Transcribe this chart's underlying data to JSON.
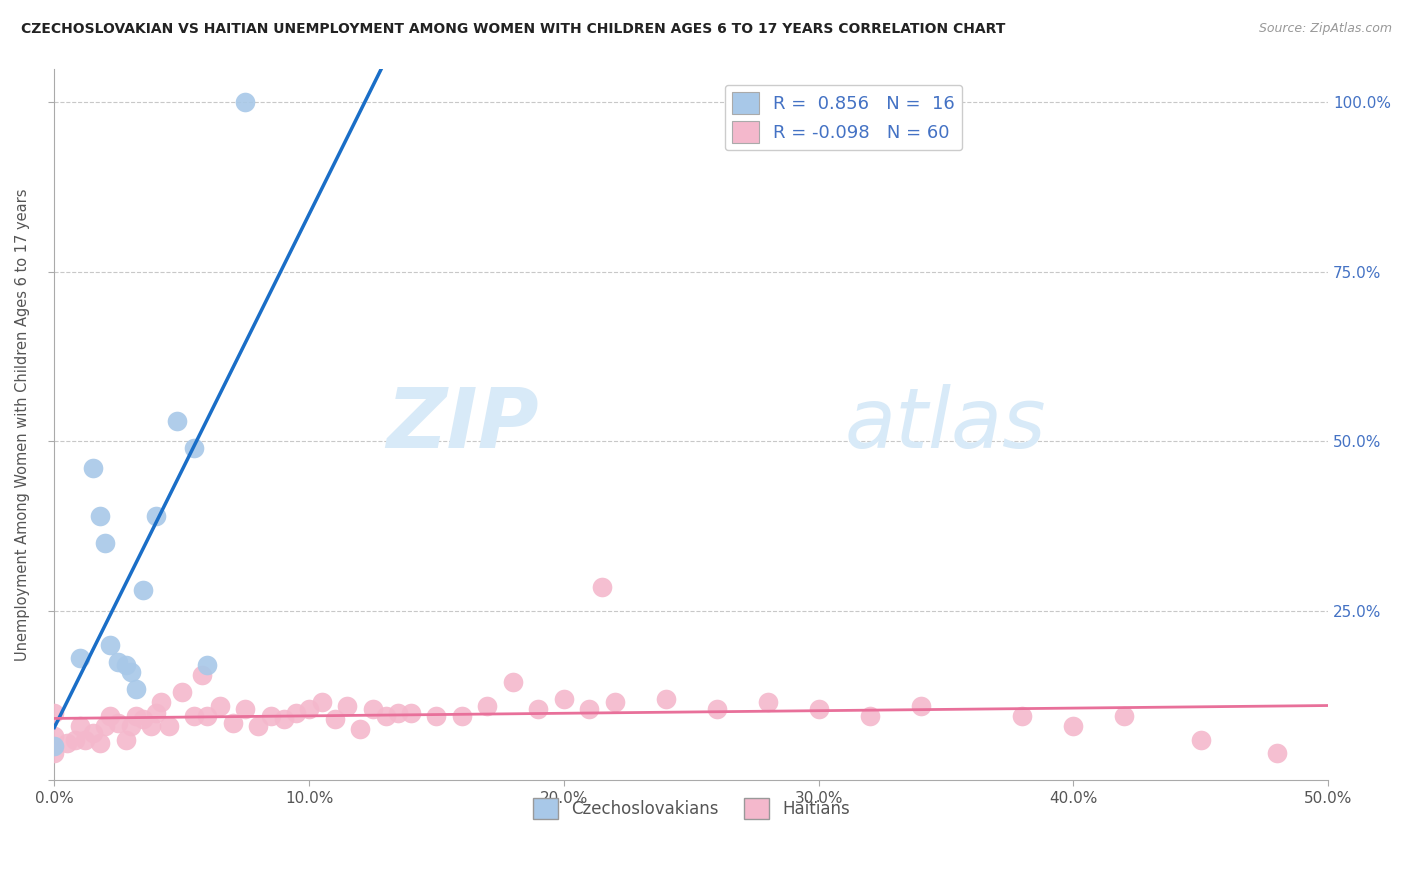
{
  "title": "CZECHOSLOVAKIAN VS HAITIAN UNEMPLOYMENT AMONG WOMEN WITH CHILDREN AGES 6 TO 17 YEARS CORRELATION CHART",
  "source": "Source: ZipAtlas.com",
  "ylabel": "Unemployment Among Women with Children Ages 6 to 17 years",
  "xlim": [
    0,
    0.5
  ],
  "ylim": [
    0,
    1.05
  ],
  "xtick_vals": [
    0.0,
    0.1,
    0.2,
    0.3,
    0.4,
    0.5
  ],
  "xtick_labels": [
    "0.0%",
    "10.0%",
    "20.0%",
    "30.0%",
    "40.0%",
    "50.0%"
  ],
  "ytick_positions": [
    0.0,
    0.25,
    0.5,
    0.75,
    1.0
  ],
  "ytick_labels": [
    "",
    "25.0%",
    "50.0%",
    "75.0%",
    "100.0%"
  ],
  "czech_color": "#a8c8e8",
  "haitian_color": "#f4b8cc",
  "czech_line_color": "#1a6ec7",
  "haitian_line_color": "#e8709a",
  "czech_R": 0.856,
  "czech_N": 16,
  "haitian_R": -0.098,
  "haitian_N": 60,
  "background_color": "#ffffff",
  "grid_color": "#c8c8c8",
  "watermark_color": "#d8eaf8",
  "czech_x": [
    0.0,
    0.01,
    0.015,
    0.018,
    0.02,
    0.022,
    0.025,
    0.028,
    0.03,
    0.032,
    0.035,
    0.04,
    0.048,
    0.055,
    0.06,
    0.075
  ],
  "czech_y": [
    0.05,
    0.18,
    0.46,
    0.39,
    0.35,
    0.2,
    0.175,
    0.17,
    0.16,
    0.135,
    0.28,
    0.39,
    0.53,
    0.49,
    0.17,
    1.0
  ],
  "haitian_x": [
    0.0,
    0.0,
    0.0,
    0.005,
    0.008,
    0.01,
    0.012,
    0.015,
    0.018,
    0.02,
    0.022,
    0.025,
    0.028,
    0.03,
    0.032,
    0.035,
    0.038,
    0.04,
    0.042,
    0.045,
    0.05,
    0.055,
    0.058,
    0.06,
    0.065,
    0.07,
    0.075,
    0.08,
    0.085,
    0.09,
    0.095,
    0.1,
    0.105,
    0.11,
    0.115,
    0.12,
    0.125,
    0.13,
    0.135,
    0.14,
    0.15,
    0.16,
    0.17,
    0.18,
    0.19,
    0.2,
    0.21,
    0.215,
    0.22,
    0.24,
    0.26,
    0.28,
    0.3,
    0.32,
    0.34,
    0.38,
    0.4,
    0.42,
    0.45,
    0.48
  ],
  "haitian_y": [
    0.04,
    0.065,
    0.1,
    0.055,
    0.06,
    0.08,
    0.06,
    0.07,
    0.055,
    0.08,
    0.095,
    0.085,
    0.06,
    0.08,
    0.095,
    0.09,
    0.08,
    0.1,
    0.115,
    0.08,
    0.13,
    0.095,
    0.155,
    0.095,
    0.11,
    0.085,
    0.105,
    0.08,
    0.095,
    0.09,
    0.1,
    0.105,
    0.115,
    0.09,
    0.11,
    0.075,
    0.105,
    0.095,
    0.1,
    0.1,
    0.095,
    0.095,
    0.11,
    0.145,
    0.105,
    0.12,
    0.105,
    0.285,
    0.115,
    0.12,
    0.105,
    0.115,
    0.105,
    0.095,
    0.11,
    0.095,
    0.08,
    0.095,
    0.06,
    0.04
  ]
}
